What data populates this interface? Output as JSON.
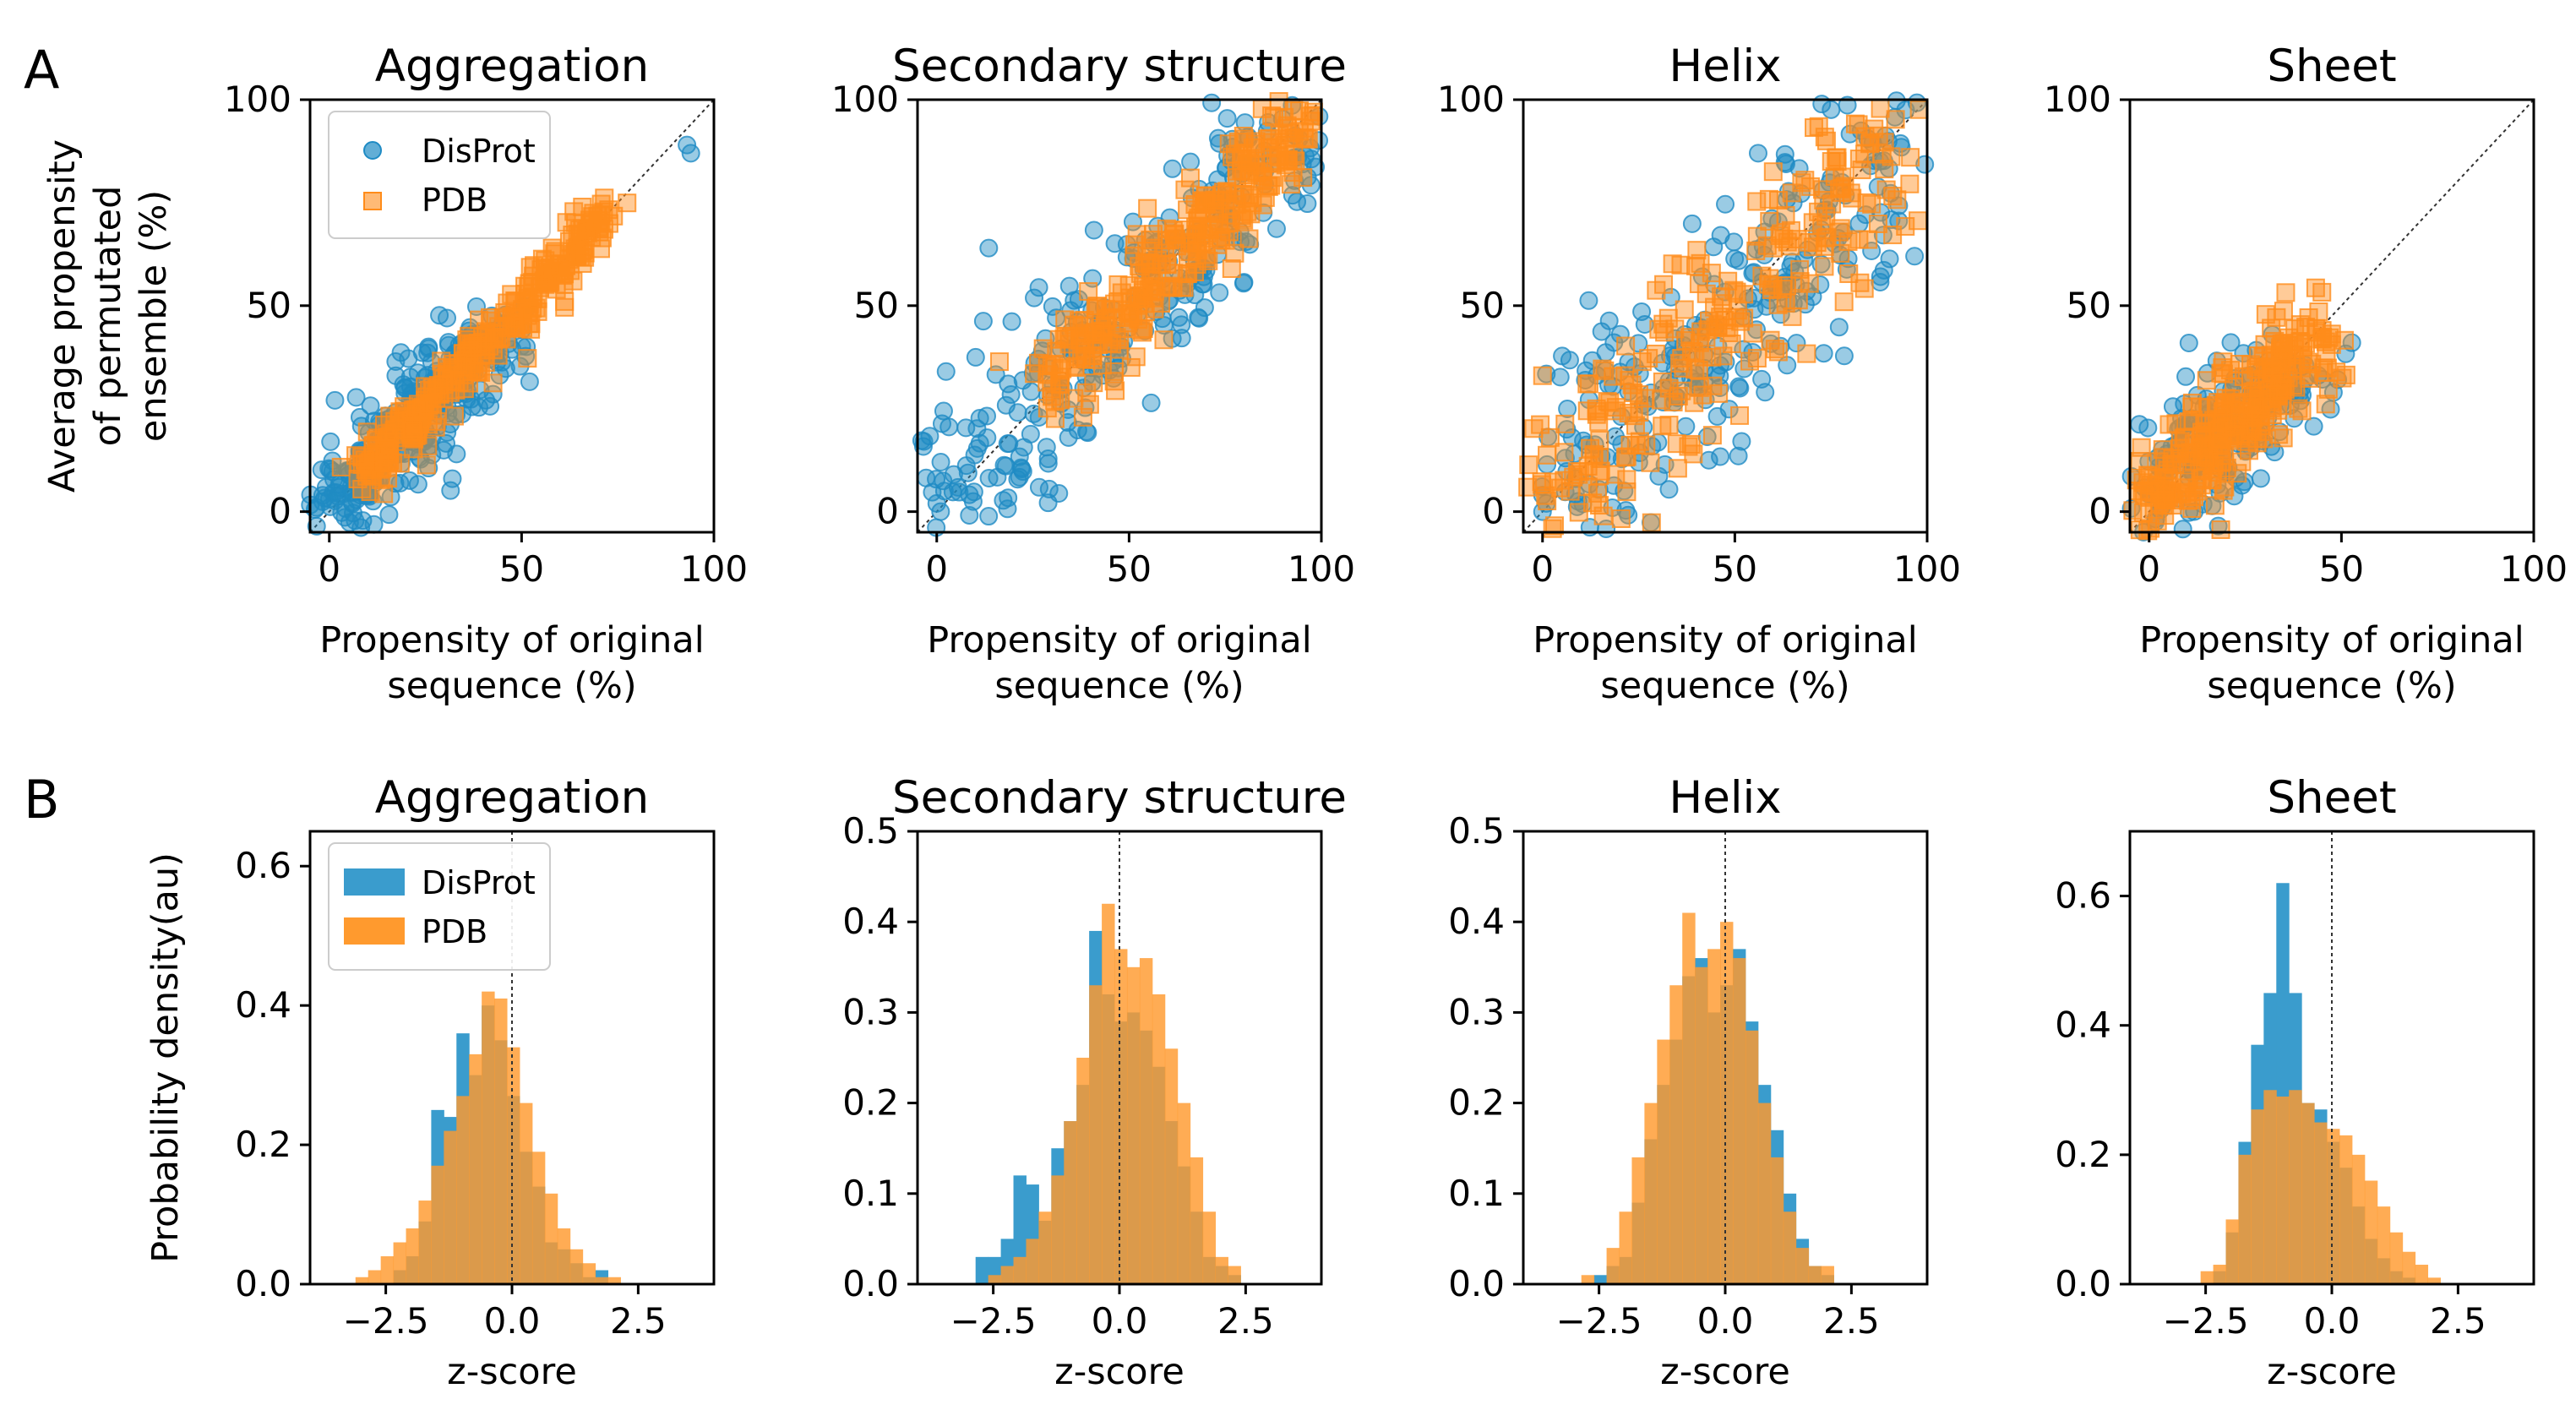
{
  "figure": {
    "panel_letters": [
      "A",
      "B"
    ]
  },
  "colors": {
    "disprot": "#1f8bc4",
    "pdb": "#ff8c1a",
    "disprot_hist": "#3a9ccd",
    "pdb_hist": "#ff9a2e",
    "overlap": "#e0883a"
  },
  "legend": {
    "disprot": "DisProt",
    "pdb": "PDB"
  },
  "labels": {
    "scatter_xlabel_line1": "Propensity of original",
    "scatter_xlabel_line2": "sequence (%)",
    "scatter_ylabel_line1": "Average propensity",
    "scatter_ylabel_line2": "of permutated",
    "scatter_ylabel_line3": "ensemble (%)",
    "hist_xlabel": "z-score",
    "hist_ylabel": "Probability density(au)"
  },
  "chart_data": [
    {
      "type": "scatter",
      "panel": "A",
      "title": "Aggregation",
      "xlim": [
        -5,
        100
      ],
      "ylim": [
        -5,
        100
      ],
      "xticks": [
        0,
        50,
        100
      ],
      "yticks": [
        0,
        50,
        100
      ],
      "legend": "upper-left",
      "diagonal": true,
      "series": [
        {
          "name": "DisProt",
          "cloud": {
            "start": 0,
            "end": 45,
            "width": 4,
            "n": 320,
            "x_skew": 1.6
          },
          "extra_points": [
            [
              93,
              89
            ],
            [
              94,
              87
            ],
            [
              32,
              8
            ]
          ]
        },
        {
          "name": "PDB",
          "cloud": {
            "start": 8,
            "end": 72,
            "width": 3,
            "n": 320,
            "x_skew": 0.8
          },
          "extra_points": []
        }
      ]
    },
    {
      "type": "scatter",
      "panel": "A",
      "title": "Secondary structure",
      "xlim": [
        -5,
        100
      ],
      "ylim": [
        -5,
        100
      ],
      "xticks": [
        0,
        50,
        100
      ],
      "yticks": [
        0,
        50,
        100
      ],
      "legend": "none",
      "diagonal": true,
      "series": [
        {
          "name": "DisProt",
          "cloud": {
            "start": 0,
            "end": 95,
            "width": 8,
            "n": 300,
            "x_skew": 1.3
          },
          "extra_points": [
            [
              0,
              2
            ],
            [
              2,
              5
            ],
            [
              1,
              0
            ]
          ]
        },
        {
          "name": "PDB",
          "cloud": {
            "start": 30,
            "end": 98,
            "width": 5,
            "n": 300,
            "x_skew": 0.8
          },
          "extra_points": [
            [
              97,
              96
            ],
            [
              98,
              97
            ]
          ]
        }
      ]
    },
    {
      "type": "scatter",
      "panel": "A",
      "title": "Helix",
      "xlim": [
        -5,
        100
      ],
      "ylim": [
        -5,
        100
      ],
      "xticks": [
        0,
        50,
        100
      ],
      "yticks": [
        0,
        50,
        100
      ],
      "legend": "none",
      "diagonal": true,
      "series": [
        {
          "name": "DisProt",
          "cloud": {
            "start": 0,
            "end": 95,
            "width": 9,
            "n": 260,
            "x_skew": 1.6
          },
          "extra_points": [
            [
              0,
              0
            ],
            [
              1,
              2
            ],
            [
              0,
              4
            ]
          ]
        },
        {
          "name": "PDB",
          "cloud": {
            "start": 0,
            "end": 96,
            "width": 9,
            "n": 280,
            "x_skew": 1.0
          },
          "extra_points": [
            [
              0,
              33
            ],
            [
              2,
              18
            ]
          ]
        }
      ]
    },
    {
      "type": "scatter",
      "panel": "A",
      "title": "Sheet",
      "xlim": [
        -5,
        100
      ],
      "ylim": [
        -5,
        100
      ],
      "xticks": [
        0,
        50,
        100
      ],
      "yticks": [
        0,
        50,
        100
      ],
      "legend": "none",
      "diagonal": true,
      "series": [
        {
          "name": "DisProt",
          "cloud": {
            "start": 0,
            "end": 35,
            "width": 5,
            "n": 200,
            "x_skew": 2.0
          },
          "extra_points": [
            [
              32,
              43
            ]
          ]
        },
        {
          "name": "PDB",
          "cloud": {
            "start": 0,
            "end": 44,
            "width": 5,
            "n": 300,
            "x_skew": 1.2
          },
          "extra_points": [
            [
              45,
              44
            ],
            [
              40,
              38
            ]
          ]
        }
      ]
    },
    {
      "type": "histogram",
      "panel": "B",
      "title": "Aggregation",
      "xlim": [
        -4.0,
        4.0
      ],
      "ylim": [
        0,
        0.65
      ],
      "xticks": [
        -2.5,
        0.0,
        2.5
      ],
      "xtick_labels": [
        "−2.5",
        "0.0",
        "2.5"
      ],
      "yticks": [
        0.0,
        0.2,
        0.4,
        0.6
      ],
      "ytick_labels": [
        "0.0",
        "0.2",
        "0.4",
        "0.6"
      ],
      "legend": "upper-left",
      "bin_start": -3.1,
      "bin_width": 0.25,
      "series": [
        {
          "name": "DisProt",
          "values": [
            0.0,
            0.0,
            0.0,
            0.02,
            0.04,
            0.09,
            0.25,
            0.24,
            0.36,
            0.3,
            0.4,
            0.35,
            0.27,
            0.19,
            0.14,
            0.06,
            0.05,
            0.03,
            0.01,
            0.02,
            0.0
          ]
        },
        {
          "name": "PDB",
          "values": [
            0.01,
            0.02,
            0.04,
            0.06,
            0.08,
            0.12,
            0.17,
            0.22,
            0.27,
            0.33,
            0.42,
            0.41,
            0.34,
            0.26,
            0.19,
            0.13,
            0.08,
            0.05,
            0.03,
            0.01,
            0.01
          ]
        }
      ]
    },
    {
      "type": "histogram",
      "panel": "B",
      "title": "Secondary structure",
      "xlim": [
        -4.0,
        4.0
      ],
      "ylim": [
        0,
        0.5
      ],
      "xticks": [
        -2.5,
        0.0,
        2.5
      ],
      "xtick_labels": [
        "−2.5",
        "0.0",
        "2.5"
      ],
      "yticks": [
        0.0,
        0.1,
        0.2,
        0.3,
        0.4,
        0.5
      ],
      "ytick_labels": [
        "0.0",
        "0.1",
        "0.2",
        "0.3",
        "0.4",
        "0.5"
      ],
      "legend": "none",
      "bin_start": -3.1,
      "bin_width": 0.25,
      "series": [
        {
          "name": "DisProt",
          "values": [
            0.0,
            0.03,
            0.03,
            0.05,
            0.12,
            0.11,
            0.07,
            0.15,
            0.18,
            0.22,
            0.39,
            0.32,
            0.29,
            0.3,
            0.28,
            0.24,
            0.18,
            0.13,
            0.08,
            0.03,
            0.02,
            0.01
          ]
        },
        {
          "name": "PDB",
          "values": [
            0.0,
            0.0,
            0.01,
            0.02,
            0.03,
            0.05,
            0.08,
            0.12,
            0.18,
            0.25,
            0.33,
            0.42,
            0.37,
            0.35,
            0.36,
            0.32,
            0.26,
            0.2,
            0.14,
            0.08,
            0.03,
            0.02
          ]
        }
      ]
    },
    {
      "type": "histogram",
      "panel": "B",
      "title": "Helix",
      "xlim": [
        -4.0,
        4.0
      ],
      "ylim": [
        0,
        0.5
      ],
      "xticks": [
        -2.5,
        0.0,
        2.5
      ],
      "xtick_labels": [
        "−2.5",
        "0.0",
        "2.5"
      ],
      "yticks": [
        0.0,
        0.1,
        0.2,
        0.3,
        0.4,
        0.5
      ],
      "ytick_labels": [
        "0.0",
        "0.1",
        "0.2",
        "0.3",
        "0.4",
        "0.5"
      ],
      "legend": "none",
      "bin_start": -3.1,
      "bin_width": 0.25,
      "series": [
        {
          "name": "DisProt",
          "values": [
            0.0,
            0.0,
            0.01,
            0.02,
            0.03,
            0.09,
            0.16,
            0.22,
            0.27,
            0.34,
            0.36,
            0.3,
            0.33,
            0.37,
            0.29,
            0.22,
            0.17,
            0.1,
            0.05,
            0.02,
            0.01
          ]
        },
        {
          "name": "PDB",
          "values": [
            0.0,
            0.01,
            0.0,
            0.04,
            0.08,
            0.14,
            0.2,
            0.27,
            0.33,
            0.41,
            0.35,
            0.37,
            0.4,
            0.36,
            0.28,
            0.2,
            0.14,
            0.08,
            0.04,
            0.02,
            0.02
          ]
        }
      ]
    },
    {
      "type": "histogram",
      "panel": "B",
      "title": "Sheet",
      "xlim": [
        -4.0,
        4.0
      ],
      "ylim": [
        0,
        0.7
      ],
      "xticks": [
        -2.5,
        0.0,
        2.5
      ],
      "xtick_labels": [
        "−2.5",
        "0.0",
        "2.5"
      ],
      "yticks": [
        0.0,
        0.2,
        0.4,
        0.6
      ],
      "ytick_labels": [
        "0.0",
        "0.2",
        "0.4",
        "0.6"
      ],
      "legend": "none",
      "bin_start": -2.6,
      "bin_width": 0.25,
      "series": [
        {
          "name": "DisProt",
          "values": [
            0.0,
            0.02,
            0.08,
            0.22,
            0.37,
            0.45,
            0.62,
            0.45,
            0.28,
            0.27,
            0.22,
            0.18,
            0.12,
            0.07,
            0.04,
            0.02,
            0.01,
            0.0
          ]
        },
        {
          "name": "PDB",
          "values": [
            0.02,
            0.03,
            0.1,
            0.2,
            0.27,
            0.3,
            0.29,
            0.3,
            0.28,
            0.25,
            0.24,
            0.23,
            0.2,
            0.16,
            0.12,
            0.08,
            0.05,
            0.03,
            0.01
          ]
        }
      ]
    }
  ]
}
